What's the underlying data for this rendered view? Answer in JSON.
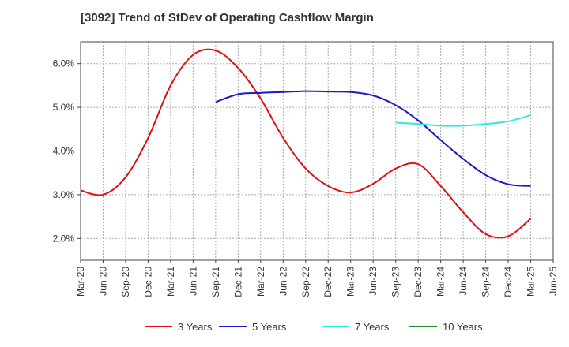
{
  "chart_data": {
    "type": "line",
    "title": "[3092]  Trend of StDev of Operating Cashflow Margin",
    "xlabel": "",
    "ylabel": "",
    "x_ticks": [
      "Mar-20",
      "Jun-20",
      "Sep-20",
      "Dec-20",
      "Mar-21",
      "Jun-21",
      "Sep-21",
      "Dec-21",
      "Mar-22",
      "Jun-22",
      "Sep-22",
      "Dec-22",
      "Mar-23",
      "Jun-23",
      "Sep-23",
      "Dec-23",
      "Mar-24",
      "Jun-24",
      "Sep-24",
      "Dec-24",
      "Mar-25",
      "Jun-25"
    ],
    "y_ticks": [
      "2.0%",
      "3.0%",
      "4.0%",
      "5.0%",
      "6.0%"
    ],
    "y_tick_values": [
      2.0,
      3.0,
      4.0,
      5.0,
      6.0
    ],
    "ylim": [
      1.5,
      6.5
    ],
    "grid": true,
    "legend_position": "bottom",
    "series": [
      {
        "name": "3 Years",
        "color": "#dd1111",
        "x": [
          "Mar-20",
          "Jun-20",
          "Sep-20",
          "Dec-20",
          "Mar-21",
          "Jun-21",
          "Sep-21",
          "Dec-21",
          "Mar-22",
          "Jun-22",
          "Sep-22",
          "Dec-22",
          "Mar-23",
          "Jun-23",
          "Sep-23",
          "Dec-23",
          "Mar-24",
          "Jun-24",
          "Sep-24",
          "Dec-24",
          "Mar-25"
        ],
        "values": [
          3.1,
          3.0,
          3.4,
          4.3,
          5.5,
          6.2,
          6.3,
          5.9,
          5.2,
          4.3,
          3.6,
          3.2,
          3.05,
          3.25,
          3.6,
          3.7,
          3.2,
          2.6,
          2.1,
          2.05,
          2.45
        ]
      },
      {
        "name": "5 Years",
        "color": "#1a1acc",
        "x": [
          "Sep-21",
          "Dec-21",
          "Mar-22",
          "Jun-22",
          "Sep-22",
          "Dec-22",
          "Mar-23",
          "Jun-23",
          "Sep-23",
          "Dec-23",
          "Mar-24",
          "Jun-24",
          "Sep-24",
          "Dec-24",
          "Mar-25"
        ],
        "values": [
          5.12,
          5.3,
          5.33,
          5.35,
          5.37,
          5.36,
          5.35,
          5.27,
          5.05,
          4.7,
          4.25,
          3.82,
          3.45,
          3.24,
          3.2
        ]
      },
      {
        "name": "7 Years",
        "color": "#33e6e6",
        "x": [
          "Sep-23",
          "Dec-23",
          "Mar-24",
          "Jun-24",
          "Sep-24",
          "Dec-24",
          "Mar-25"
        ],
        "values": [
          4.65,
          4.62,
          4.58,
          4.58,
          4.62,
          4.68,
          4.82
        ]
      },
      {
        "name": "10 Years",
        "color": "#2a8a2a",
        "x": [],
        "values": []
      }
    ]
  }
}
